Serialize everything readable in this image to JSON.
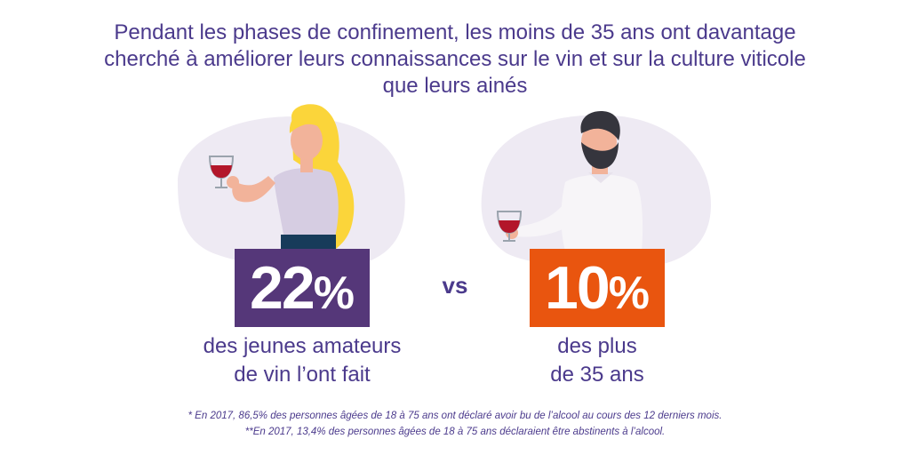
{
  "title": {
    "line1": "Pendant les phases de confinement, les moins de 35 ans ont davantage",
    "line2": "cherché à améliorer leurs connaissances sur le vin et sur la culture viticole",
    "line3": "que leurs ainés"
  },
  "young": {
    "value": "22",
    "percent_sign": "%",
    "caption_line1": "des jeunes amateurs",
    "caption_line2": "de vin l’ont fait",
    "color": "#553779"
  },
  "vs_label": "vs",
  "old": {
    "value": "10",
    "percent_sign": "%",
    "caption_line1": "des plus",
    "caption_line2": "de 35 ans",
    "color": "#e9550f"
  },
  "footnotes": {
    "note1": "* En 2017, 86,5% des personnes âgées de 18 à 75 ans ont déclaré avoir bu de l’alcool au cours des 12 derniers mois.",
    "note2": "**En 2017, 13,4% des personnes âgées de 18 à 75 ans déclaraient être abstinents à l’alcool."
  },
  "illustrations": {
    "young_person": "woman-with-wine-glass-illustration",
    "older_person": "bearded-man-with-wine-glass-illustration"
  }
}
